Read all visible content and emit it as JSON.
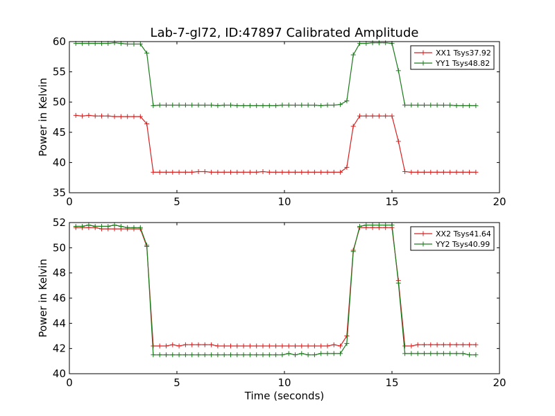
{
  "chart_data": [
    {
      "type": "line",
      "title": "Lab-7-gl72, ID:47897 Calibrated Amplitude",
      "xlabel": "",
      "ylabel": "Power in Kelvin",
      "xlim": [
        0,
        20
      ],
      "ylim": [
        35,
        60
      ],
      "xticks": [
        "0",
        "5",
        "10",
        "15",
        "20"
      ],
      "yticks": [
        "35",
        "40",
        "45",
        "50",
        "55",
        "60"
      ],
      "grid": false,
      "legend": "top-right",
      "x": [
        0.3,
        0.6,
        0.9,
        1.2,
        1.5,
        1.8,
        2.1,
        2.4,
        2.7,
        3.0,
        3.3,
        3.6,
        3.9,
        4.2,
        4.5,
        4.8,
        5.1,
        5.4,
        5.7,
        6.0,
        6.3,
        6.6,
        6.9,
        7.2,
        7.5,
        7.8,
        8.1,
        8.4,
        8.7,
        9.0,
        9.3,
        9.6,
        9.9,
        10.2,
        10.5,
        10.8,
        11.1,
        11.4,
        11.7,
        12.0,
        12.3,
        12.6,
        12.9,
        13.2,
        13.5,
        13.8,
        14.1,
        14.4,
        14.7,
        15.0,
        15.3,
        15.6,
        15.9,
        16.2,
        16.5,
        16.8,
        17.1,
        17.4,
        17.7,
        18.0,
        18.3,
        18.6,
        18.9
      ],
      "series": [
        {
          "name": "XX1 Tsys37.92",
          "color": "#d62020",
          "values": [
            47.8,
            47.7,
            47.8,
            47.7,
            47.7,
            47.7,
            47.6,
            47.6,
            47.6,
            47.6,
            47.6,
            46.4,
            38.4,
            38.4,
            38.4,
            38.4,
            38.4,
            38.4,
            38.4,
            38.5,
            38.5,
            38.4,
            38.4,
            38.4,
            38.4,
            38.4,
            38.4,
            38.4,
            38.4,
            38.5,
            38.4,
            38.4,
            38.4,
            38.4,
            38.4,
            38.4,
            38.4,
            38.4,
            38.4,
            38.4,
            38.4,
            38.4,
            39.2,
            46.0,
            47.7,
            47.7,
            47.7,
            47.7,
            47.7,
            47.7,
            43.5,
            38.5,
            38.4,
            38.4,
            38.4,
            38.4,
            38.4,
            38.4,
            38.4,
            38.4,
            38.4,
            38.4,
            38.4
          ]
        },
        {
          "name": "YY1 Tsys48.82",
          "color": "#1a7a1a",
          "values": [
            59.7,
            59.7,
            59.7,
            59.7,
            59.7,
            59.7,
            59.8,
            59.7,
            59.6,
            59.6,
            59.6,
            58.1,
            49.4,
            49.5,
            49.5,
            49.5,
            49.5,
            49.5,
            49.5,
            49.5,
            49.5,
            49.5,
            49.4,
            49.5,
            49.5,
            49.4,
            49.4,
            49.4,
            49.4,
            49.4,
            49.4,
            49.4,
            49.5,
            49.5,
            49.5,
            49.5,
            49.5,
            49.5,
            49.4,
            49.5,
            49.5,
            49.6,
            50.2,
            57.8,
            59.7,
            59.7,
            59.8,
            59.8,
            59.8,
            59.7,
            55.2,
            49.5,
            49.5,
            49.5,
            49.5,
            49.5,
            49.5,
            49.5,
            49.5,
            49.4,
            49.4,
            49.4,
            49.4
          ]
        }
      ]
    },
    {
      "type": "line",
      "title": "",
      "xlabel": "Time (seconds)",
      "ylabel": "Power in Kelvin",
      "xlim": [
        0,
        20
      ],
      "ylim": [
        40,
        52
      ],
      "xticks": [
        "0",
        "5",
        "10",
        "15",
        "20"
      ],
      "yticks": [
        "40",
        "42",
        "44",
        "46",
        "48",
        "50",
        "52"
      ],
      "grid": false,
      "legend": "top-right",
      "x": [
        0.3,
        0.6,
        0.9,
        1.2,
        1.5,
        1.8,
        2.1,
        2.4,
        2.7,
        3.0,
        3.3,
        3.6,
        3.9,
        4.2,
        4.5,
        4.8,
        5.1,
        5.4,
        5.7,
        6.0,
        6.3,
        6.6,
        6.9,
        7.2,
        7.5,
        7.8,
        8.1,
        8.4,
        8.7,
        9.0,
        9.3,
        9.6,
        9.9,
        10.2,
        10.5,
        10.8,
        11.1,
        11.4,
        11.7,
        12.0,
        12.3,
        12.6,
        12.9,
        13.2,
        13.5,
        13.8,
        14.1,
        14.4,
        14.7,
        15.0,
        15.3,
        15.6,
        15.9,
        16.2,
        16.5,
        16.8,
        17.1,
        17.4,
        17.7,
        18.0,
        18.3,
        18.6,
        18.9
      ],
      "series": [
        {
          "name": "XX2 Tsys41.64",
          "color": "#d62020",
          "values": [
            51.6,
            51.6,
            51.6,
            51.6,
            51.5,
            51.5,
            51.5,
            51.5,
            51.5,
            51.5,
            51.5,
            50.1,
            42.2,
            42.2,
            42.2,
            42.3,
            42.2,
            42.3,
            42.3,
            42.3,
            42.3,
            42.3,
            42.2,
            42.2,
            42.2,
            42.2,
            42.2,
            42.2,
            42.2,
            42.2,
            42.2,
            42.2,
            42.2,
            42.2,
            42.2,
            42.2,
            42.2,
            42.2,
            42.2,
            42.2,
            42.3,
            42.2,
            43.0,
            49.8,
            51.6,
            51.6,
            51.6,
            51.6,
            51.6,
            51.6,
            47.4,
            42.2,
            42.2,
            42.3,
            42.3,
            42.3,
            42.3,
            42.3,
            42.3,
            42.3,
            42.3,
            42.3,
            42.3
          ]
        },
        {
          "name": "YY2 Tsys40.99",
          "color": "#1a7a1a",
          "values": [
            51.7,
            51.7,
            51.8,
            51.7,
            51.7,
            51.7,
            51.8,
            51.7,
            51.6,
            51.6,
            51.6,
            50.2,
            41.5,
            41.5,
            41.5,
            41.5,
            41.5,
            41.5,
            41.5,
            41.5,
            41.5,
            41.5,
            41.5,
            41.5,
            41.5,
            41.5,
            41.5,
            41.5,
            41.5,
            41.5,
            41.5,
            41.5,
            41.5,
            41.6,
            41.5,
            41.6,
            41.5,
            41.5,
            41.6,
            41.6,
            41.6,
            41.6,
            42.4,
            49.7,
            51.7,
            51.8,
            51.8,
            51.8,
            51.8,
            51.8,
            47.2,
            41.6,
            41.6,
            41.6,
            41.6,
            41.6,
            41.6,
            41.6,
            41.6,
            41.6,
            41.6,
            41.5,
            41.5
          ]
        }
      ]
    }
  ]
}
